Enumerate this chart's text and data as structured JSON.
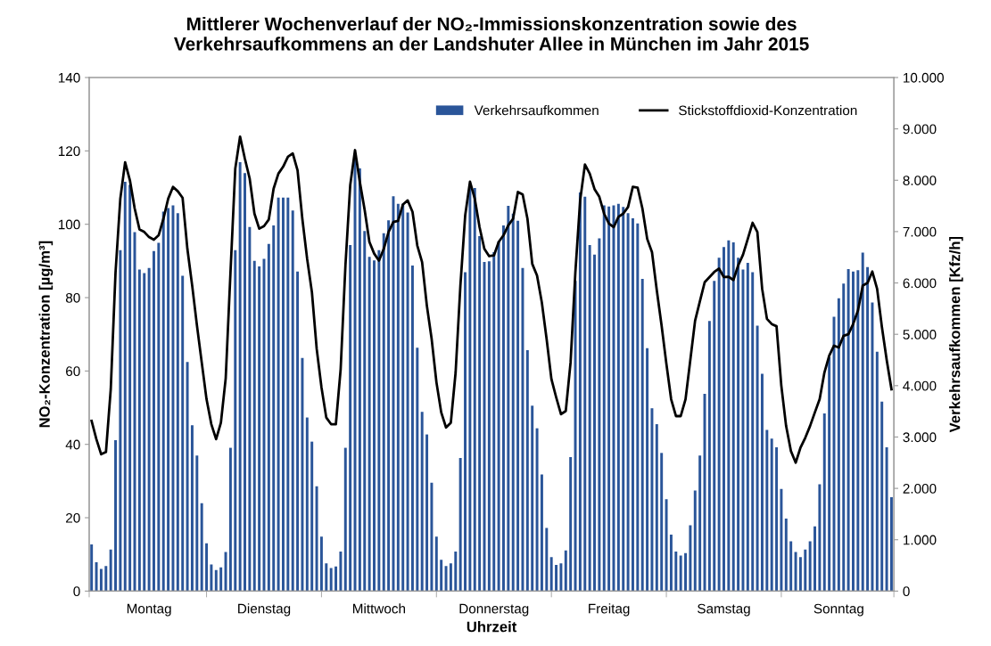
{
  "chart_data": {
    "type": "bar",
    "title": "Mittlerer Wochenverlauf der NO₂-Immissionskonzentration sowie des\nVerkehrsaufkommens an der Landshuter Allee in München im Jahr 2015",
    "xlabel": "Uhrzeit",
    "ylabel": "NO₂-Konzentration [µg/m³]",
    "y2label": "Verkehrsaufkommen [Kfz/h]",
    "categories": [
      null,
      null,
      null,
      null,
      null,
      null,
      null,
      null,
      null,
      null,
      null,
      null,
      "Montag",
      null,
      null,
      null,
      null,
      null,
      null,
      null,
      null,
      null,
      null,
      null,
      null,
      null,
      null,
      null,
      null,
      null,
      null,
      null,
      null,
      null,
      null,
      null,
      "Dienstag",
      null,
      null,
      null,
      null,
      null,
      null,
      null,
      null,
      null,
      null,
      null,
      null,
      null,
      null,
      null,
      null,
      null,
      null,
      null,
      null,
      null,
      null,
      null,
      "Mittwoch",
      null,
      null,
      null,
      null,
      null,
      null,
      null,
      null,
      null,
      null,
      null,
      null,
      null,
      null,
      null,
      null,
      null,
      null,
      null,
      null,
      null,
      null,
      null,
      "Donnerstag",
      null,
      null,
      null,
      null,
      null,
      null,
      null,
      null,
      null,
      null,
      null,
      null,
      null,
      null,
      null,
      null,
      null,
      null,
      null,
      null,
      null,
      null,
      null,
      "Freitag",
      null,
      null,
      null,
      null,
      null,
      null,
      null,
      null,
      null,
      null,
      null,
      null,
      null,
      null,
      null,
      null,
      null,
      null,
      null,
      null,
      null,
      null,
      null,
      "Samstag",
      null,
      null,
      null,
      null,
      null,
      null,
      null,
      null,
      null,
      null,
      null,
      null,
      null,
      null,
      null,
      null,
      null,
      null,
      null,
      null,
      null,
      null,
      null,
      "Sonntag",
      null,
      null,
      null,
      null,
      null,
      null,
      null,
      null,
      null,
      null,
      null
    ],
    "ylim": [
      0,
      140
    ],
    "yticks": [
      0,
      20,
      40,
      60,
      80,
      100,
      120,
      140
    ],
    "y2lim": [
      0,
      10000
    ],
    "y2ticks": [
      0,
      {
        "value": 1000,
        "label": "1.000"
      },
      {
        "value": 2000,
        "label": "2.000"
      },
      {
        "value": 3000,
        "label": "3.000"
      },
      {
        "value": 4000,
        "label": "4.000"
      },
      {
        "value": 5000,
        "label": "5.000"
      },
      {
        "value": 6000,
        "label": "6.000"
      },
      {
        "value": 7000,
        "label": "7.000"
      },
      {
        "value": 8000,
        "label": "8.000"
      },
      {
        "value": 9000,
        "label": "9.000"
      },
      {
        "value": 10000,
        "label": "10.000"
      }
    ],
    "legend": "top right",
    "grid": false,
    "series": [
      {
        "name": "Verkehrsaufkommen",
        "axis": "y2",
        "color": "#2a5599",
        "values": [
          910,
          560,
          430,
          490,
          810,
          2940,
          6640,
          7970,
          7910,
          6990,
          6260,
          6190,
          6290,
          6620,
          6780,
          7390,
          7460,
          7510,
          7360,
          6140,
          4460,
          3230,
          2640,
          1710,
          930,
          520,
          410,
          460,
          760,
          2790,
          6640,
          8350,
          8140,
          7090,
          6430,
          6320,
          6470,
          6760,
          7120,
          7660,
          7660,
          7660,
          7410,
          6220,
          4540,
          3380,
          2910,
          2040,
          1060,
          540,
          450,
          480,
          770,
          2790,
          6740,
          8440,
          8230,
          7010,
          6510,
          6440,
          6640,
          6970,
          7220,
          7690,
          7540,
          7540,
          7370,
          6340,
          4740,
          3490,
          3050,
          2110,
          1060,
          610,
          490,
          540,
          770,
          2590,
          6210,
          7850,
          7850,
          6910,
          6410,
          6420,
          6600,
          6810,
          7120,
          7500,
          7350,
          7210,
          6290,
          4690,
          3610,
          3170,
          2270,
          1230,
          660,
          510,
          540,
          790,
          2610,
          6040,
          7760,
          7680,
          6740,
          6550,
          6870,
          7510,
          7490,
          7510,
          7540,
          7480,
          7360,
          7260,
          7160,
          6080,
          4730,
          3560,
          3250,
          2690,
          1790,
          1100,
          770,
          690,
          740,
          1280,
          1960,
          2640,
          3840,
          5260,
          6040,
          6490,
          6700,
          6830,
          6790,
          6490,
          6260,
          6390,
          6210,
          5170,
          4230,
          3140,
          2970,
          2800,
          1990,
          1410,
          970,
          760,
          660,
          810,
          970,
          1260,
          2080,
          3460,
          4550,
          5340,
          5700,
          5990,
          6270,
          6220,
          6250,
          6590,
          6310,
          5620,
          4660,
          3690,
          2800,
          1830
        ]
      },
      {
        "name": "Stickstoffdioxid-Konzentration",
        "type": "line",
        "color": "#000000",
        "values": [
          46.4,
          41.4,
          37.3,
          37.9,
          55,
          86.9,
          107,
          116.9,
          112,
          104.3,
          98.6,
          97.9,
          96.5,
          95.8,
          97,
          101.5,
          107,
          110.2,
          109,
          107.2,
          93.3,
          83.3,
          72.4,
          62.3,
          52.3,
          45.5,
          41.4,
          45.9,
          58,
          86.9,
          115.2,
          123.9,
          117.9,
          112.5,
          102.9,
          98.8,
          99.5,
          101.3,
          109.7,
          113.8,
          115.7,
          118.4,
          119.3,
          114.7,
          101.5,
          90.6,
          81.5,
          66,
          55.5,
          47.3,
          45.5,
          45.5,
          60.5,
          88.8,
          110.7,
          120.2,
          111.6,
          104,
          95.2,
          92,
          90.1,
          93.3,
          97.9,
          100.6,
          100.9,
          105.4,
          106.5,
          103.4,
          94.2,
          89.7,
          77.8,
          68.7,
          56.9,
          48.7,
          44.6,
          45.9,
          59.6,
          83.3,
          102.4,
          111.6,
          107,
          99.2,
          93.3,
          91.3,
          91.5,
          95.2,
          97,
          99.7,
          101.5,
          108.8,
          108.1,
          101.5,
          89.2,
          86,
          78.7,
          68.7,
          57.8,
          52.8,
          48.2,
          49.1,
          62.3,
          86.9,
          106.5,
          116.3,
          113.8,
          109.6,
          107.5,
          102.9,
          100.2,
          99.2,
          102,
          102.9,
          104.7,
          110.2,
          110,
          104.3,
          96,
          92.4,
          82,
          72.4,
          62,
          52.3,
          47.7,
          47.7,
          52.3,
          63,
          73.7,
          79,
          84.2,
          85.6,
          87,
          87.9,
          85.6,
          85.7,
          84.8,
          88.8,
          91.7,
          96,
          100.4,
          97.9,
          82.4,
          74.2,
          72.8,
          72.2,
          56,
          45,
          38.2,
          35,
          39.1,
          41.8,
          45,
          48.7,
          52.3,
          59.6,
          64.2,
          66.9,
          66.4,
          69.6,
          70,
          72.8,
          76.5,
          83.3,
          84,
          87.1,
          82.4,
          72,
          63,
          55
        ]
      }
    ]
  }
}
